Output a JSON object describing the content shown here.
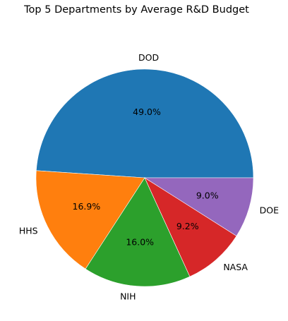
{
  "chart_data": {
    "type": "pie",
    "title": "Top 5 Departments by Average R&D Budget",
    "categories": [
      "DOD",
      "HHS",
      "NIH",
      "NASA",
      "DOE"
    ],
    "values": [
      49.0,
      16.9,
      16.0,
      9.2,
      9.0
    ],
    "value_labels": [
      "49.0%",
      "16.9%",
      "16.0%",
      "9.2%",
      "9.0%"
    ],
    "colors": [
      "#1f77b4",
      "#ff7f0e",
      "#2ca02c",
      "#d62728",
      "#9467bd"
    ],
    "start_angle_deg": 0,
    "direction": "counterclockwise",
    "legend": "none"
  }
}
